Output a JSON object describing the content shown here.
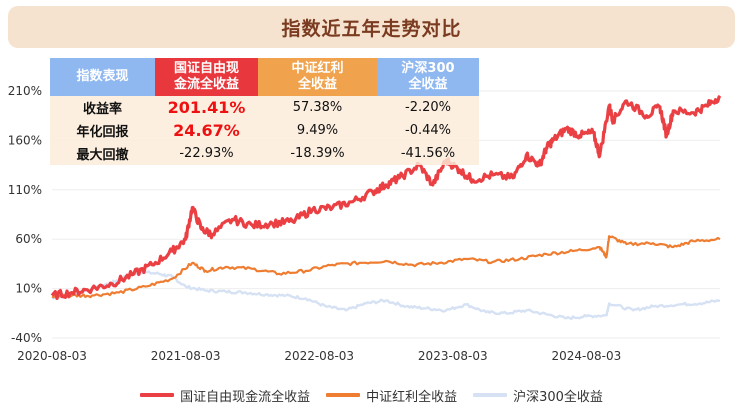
{
  "title": "指数近五年走势对比",
  "chart_data": {
    "type": "line",
    "y_ticks": [
      "210%",
      "160%",
      "110%",
      "60%",
      "10%",
      "-40%"
    ],
    "y_tick_values": [
      210,
      160,
      110,
      60,
      10,
      -40
    ],
    "ylim": [
      -40,
      210
    ],
    "x_ticks": [
      "2020-08-03",
      "2021-08-03",
      "2022-08-03",
      "2023-08-03",
      "2024-08-03"
    ],
    "x_tick_values": [
      0,
      1,
      2,
      3,
      4
    ],
    "xlim": [
      0,
      5
    ],
    "series": [
      {
        "name": "国证自由现金流全收益",
        "color": "#ea3f43",
        "x": [
          0,
          0.15,
          0.3,
          0.45,
          0.6,
          0.75,
          0.9,
          1.0,
          1.05,
          1.12,
          1.2,
          1.35,
          1.5,
          1.65,
          1.8,
          1.95,
          2.1,
          2.25,
          2.4,
          2.5,
          2.6,
          2.75,
          2.85,
          2.95,
          3.05,
          3.15,
          3.3,
          3.45,
          3.55,
          3.65,
          3.7,
          3.75,
          3.85,
          3.95,
          4.05,
          4.1,
          4.17,
          4.2,
          4.3,
          4.45,
          4.55,
          4.6,
          4.65,
          4.8,
          4.9,
          5.0
        ],
        "values": [
          3,
          6,
          10,
          15,
          24,
          34,
          48,
          60,
          92,
          70,
          65,
          80,
          74,
          76,
          78,
          90,
          92,
          98,
          108,
          115,
          122,
          135,
          115,
          140,
          130,
          120,
          125,
          122,
          145,
          135,
          152,
          160,
          172,
          165,
          168,
          145,
          195,
          180,
          200,
          185,
          194,
          165,
          190,
          188,
          195,
          205
        ]
      },
      {
        "name": "中证红利全收益",
        "color": "#ee7d31",
        "x": [
          0,
          0.15,
          0.3,
          0.5,
          0.7,
          0.9,
          1.05,
          1.15,
          1.3,
          1.5,
          1.7,
          1.9,
          2.1,
          2.3,
          2.5,
          2.7,
          2.9,
          3.1,
          3.3,
          3.5,
          3.7,
          3.9,
          4.1,
          4.15,
          4.17,
          4.3,
          4.5,
          4.65,
          4.8,
          5.0
        ],
        "values": [
          2,
          3,
          3,
          6,
          12,
          20,
          36,
          28,
          32,
          30,
          25,
          28,
          34,
          36,
          38,
          34,
          36,
          40,
          37,
          40,
          45,
          48,
          52,
          42,
          63,
          55,
          56,
          52,
          58,
          60
        ]
      },
      {
        "name": "沪深300全收益",
        "color": "#d6e2f4",
        "x": [
          0,
          0.15,
          0.3,
          0.45,
          0.55,
          0.65,
          0.8,
          0.9,
          1.0,
          1.15,
          1.3,
          1.45,
          1.6,
          1.75,
          1.9,
          2.05,
          2.2,
          2.35,
          2.5,
          2.65,
          2.8,
          2.95,
          3.1,
          3.25,
          3.4,
          3.55,
          3.7,
          3.85,
          4.0,
          4.15,
          4.17,
          4.35,
          4.5,
          4.7,
          4.85,
          5.0
        ],
        "values": [
          0,
          4,
          10,
          16,
          22,
          27,
          25,
          22,
          12,
          8,
          7,
          6,
          4,
          3,
          0,
          -8,
          -12,
          -5,
          -2,
          -8,
          -10,
          -12,
          -6,
          -14,
          -15,
          -12,
          -16,
          -20,
          -18,
          -17,
          -5,
          -12,
          -8,
          -6,
          -5,
          -2
        ]
      }
    ],
    "legend_position": "bottom-center"
  },
  "stats_table": {
    "header": [
      "指数表现",
      "国证自由现金流全收益",
      "中证红利全收益",
      "沪深300全收益"
    ],
    "header_lines": [
      [
        "指数表现"
      ],
      [
        "国证自由现",
        "金流全收益"
      ],
      [
        "中证红利",
        "全收益"
      ],
      [
        "沪深300",
        "全收益"
      ]
    ],
    "rows": [
      {
        "label": "收益率",
        "values": [
          "201.41%",
          "57.38%",
          "-2.20%"
        ]
      },
      {
        "label": "年化回报",
        "values": [
          "24.67%",
          "9.49%",
          "-0.44%"
        ]
      },
      {
        "label": "最大回撤",
        "values": [
          "-22.93%",
          "-18.39%",
          "-41.56%"
        ]
      }
    ]
  }
}
